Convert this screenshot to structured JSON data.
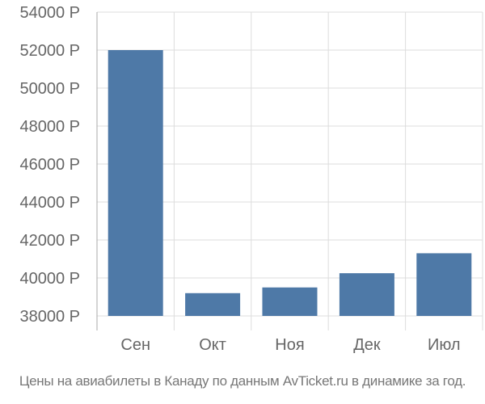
{
  "chart_data": {
    "type": "bar",
    "categories": [
      "Сен",
      "Окт",
      "Ноя",
      "Дек",
      "Июл"
    ],
    "values": [
      52000,
      39200,
      39500,
      40250,
      41300
    ],
    "ylim": [
      38000,
      54000
    ],
    "yticks": [
      38000,
      40000,
      42000,
      44000,
      46000,
      48000,
      50000,
      52000,
      54000
    ],
    "ytick_labels": [
      "38000 Р",
      "40000 Р",
      "42000 Р",
      "44000 Р",
      "46000 Р",
      "48000 Р",
      "50000 Р",
      "52000 Р",
      "54000 Р"
    ],
    "grid": true,
    "bar_color": "#4e79a7",
    "grid_color": "#dddddd",
    "axis_color": "#aaaaaa",
    "label_color": "#666666"
  },
  "caption": "Цены на авиабилеты в Канаду по данным AvTicket.ru в динамике за год."
}
